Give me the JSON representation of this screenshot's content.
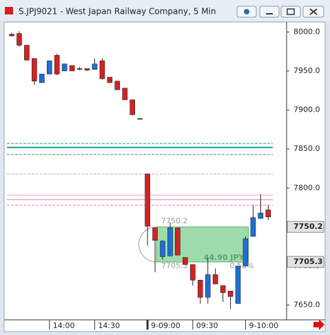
{
  "window": {
    "title": "S.JPJ9021 - West Japan Railway Company, 5 Min"
  },
  "chart_data": {
    "type": "candlestick",
    "categories": [
      null,
      null,
      null,
      null,
      null,
      "14:00",
      null,
      null,
      null,
      null,
      null,
      "14:30",
      null,
      null,
      null,
      null,
      null,
      null,
      "9-09:00",
      null,
      null,
      null,
      null,
      null,
      "09:30",
      null,
      null,
      null,
      null,
      null,
      null,
      "9-10:00",
      null,
      null,
      null
    ],
    "open": [
      7997,
      7998,
      7983,
      7966,
      7935,
      7946,
      7970,
      7950,
      7957,
      7953,
      7953,
      7952,
      7963,
      7942,
      7937,
      7928,
      7913,
      7889,
      7818,
      7749,
      7712,
      7713,
      7749,
      7711,
      7702,
      7682,
      7660,
      7689,
      7675,
      7668,
      7652,
      7700,
      7738,
      7761,
      7772
    ],
    "high": [
      7999,
      8001,
      7983,
      7966,
      7946,
      7963,
      7972,
      7959,
      7957,
      7955,
      7953,
      7966,
      7966,
      7942,
      7937,
      7928,
      7913,
      7889,
      7818,
      7749,
      7733,
      7756,
      7749,
      7711,
      7702,
      7682,
      7710,
      7697,
      7675,
      7668,
      7700,
      7738,
      7778,
      7792,
      7778
    ],
    "low": [
      7994,
      7981,
      7963,
      7932,
      7935,
      7946,
      7945,
      7950,
      7950,
      7951,
      7950,
      7952,
      7939,
      7935,
      7926,
      7913,
      7893,
      7889,
      7726,
      7692,
      7708,
      7713,
      7714,
      7702,
      7675,
      7652,
      7652,
      7677,
      7654,
      7645,
      7652,
      7700,
      7738,
      7761,
      7759
    ],
    "close": [
      7995,
      7983,
      7964,
      7937,
      7946,
      7963,
      7946,
      7959,
      7950,
      7953,
      7951,
      7959,
      7940,
      7935,
      7926,
      7913,
      7894,
      7889,
      7751,
      7733,
      7732,
      7749,
      7714,
      7702,
      7682,
      7660,
      7689,
      7677,
      7666,
      7661,
      7700,
      7735,
      7762,
      7768,
      7763
    ],
    "up_color": "#1e6fd6",
    "down_color": "#d42222",
    "ylim": [
      7632,
      8010
    ],
    "yticks": [
      {
        "value": 7650,
        "label": "7650.0"
      },
      {
        "value": 7700,
        "label": "7700.0"
      },
      {
        "value": 7750,
        "label": "7750.0"
      },
      {
        "value": 7800,
        "label": "7800.0"
      },
      {
        "value": 7850,
        "label": "7850.0"
      },
      {
        "value": 7900,
        "label": "7900.0"
      },
      {
        "value": 7950,
        "label": "7950.0"
      },
      {
        "value": 8000,
        "label": "8000.0"
      }
    ],
    "hlines": [
      {
        "value": 7857,
        "color": "#2aa84a",
        "style": "dashed"
      },
      {
        "value": 7852,
        "color": "#1aa3a3",
        "style": "solid"
      },
      {
        "value": 7843,
        "color": "#2aa84a",
        "style": "dashed"
      },
      {
        "value": 7818,
        "color": "#bbbbbb",
        "style": "dashed"
      },
      {
        "value": 7791,
        "color": "#f0a8c8",
        "style": "solid"
      },
      {
        "value": 7785,
        "color": "#e87ab0",
        "style": "solid"
      },
      {
        "value": 7778,
        "color": "#e87ab0",
        "style": "dashed"
      }
    ],
    "measure": {
      "from": 7750.2,
      "to": 7705.3,
      "change_label": "44.90 JPY",
      "percent_label": "0.58%",
      "color": "#7fd08f"
    }
  }
}
